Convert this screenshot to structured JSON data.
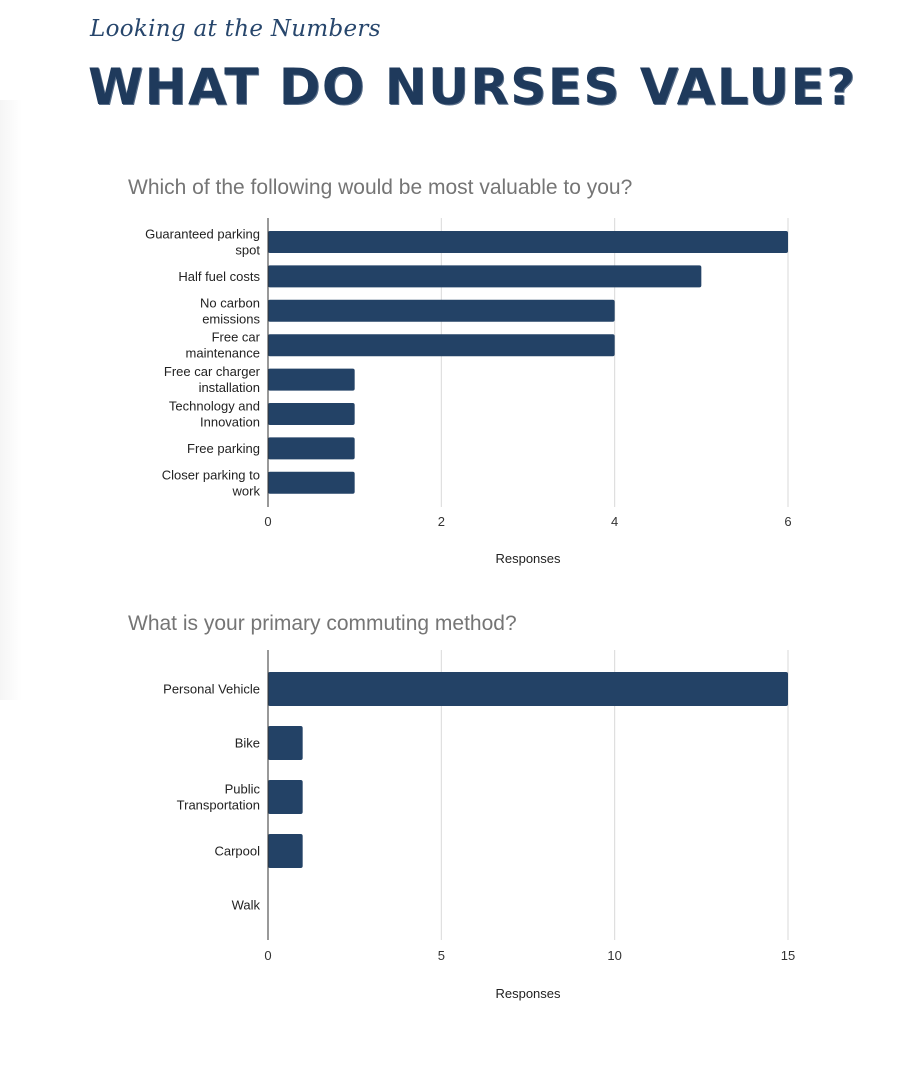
{
  "header": {
    "eyebrow": "Looking at the Numbers",
    "title": "WHAT DO NURSES VALUE?"
  },
  "colors": {
    "bar": "#234266",
    "title": "#1f3a5c",
    "grid": "#d9d9d9"
  },
  "chart_data": [
    {
      "type": "bar",
      "orientation": "horizontal",
      "title": "Which of the following would be most valuable to you?",
      "categories": [
        [
          "Guaranteed parking",
          "spot"
        ],
        [
          "Half fuel costs"
        ],
        [
          "No carbon",
          "emissions"
        ],
        [
          "Free car",
          "maintenance"
        ],
        [
          "Free car charger",
          "installation"
        ],
        [
          "Technology and",
          "Innovation"
        ],
        [
          "Free parking"
        ],
        [
          "Closer parking to",
          "work"
        ]
      ],
      "values": [
        6,
        5,
        4,
        4,
        1,
        1,
        1,
        1
      ],
      "xlabel": "Responses",
      "ylabel": "",
      "xlim": [
        0,
        6
      ],
      "xticks": [
        0,
        2,
        4,
        6
      ],
      "grid": true
    },
    {
      "type": "bar",
      "orientation": "horizontal",
      "title": "What is your primary commuting method?",
      "categories": [
        [
          "Personal Vehicle"
        ],
        [
          "Bike"
        ],
        [
          "Public",
          "Transportation"
        ],
        [
          "Carpool"
        ],
        [
          "Walk"
        ]
      ],
      "values": [
        15,
        1,
        1,
        1,
        0
      ],
      "xlabel": "Responses",
      "ylabel": "",
      "xlim": [
        0,
        15
      ],
      "xticks": [
        0,
        5,
        10,
        15
      ],
      "grid": true
    }
  ]
}
